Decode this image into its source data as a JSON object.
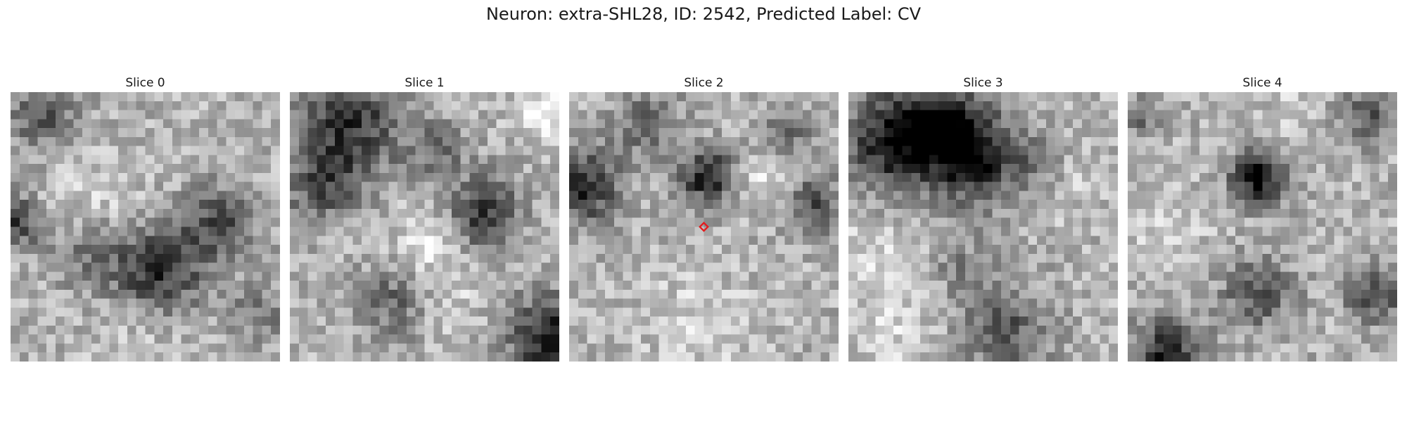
{
  "figure": {
    "title": "Neuron: extra-SHL28, ID: 2542, Predicted Label: CV"
  },
  "slices": [
    {
      "label": "Slice 0"
    },
    {
      "label": "Slice 1"
    },
    {
      "label": "Slice 2"
    },
    {
      "label": "Slice 3"
    },
    {
      "label": "Slice 4"
    }
  ],
  "marker": {
    "slice": 2,
    "shape": "diamond",
    "color": "#e41a1c"
  },
  "colormap": "gray"
}
